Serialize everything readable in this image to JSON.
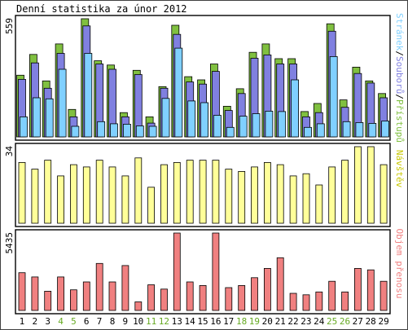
{
  "title": "Denní statistika za únor 2012",
  "colors": {
    "hits": "#80c040",
    "files": "#8080e0",
    "pages": "#80d0ff",
    "visits": "#ffff99",
    "kbytes": "#f08080",
    "outline": "#000000",
    "weekend_label": "#66aa22",
    "weekday_label": "#000000",
    "frame": "#404040"
  },
  "legend": {
    "top": [
      {
        "text": "Přístupů",
        "color": "#80c040"
      },
      {
        "text": "Souborů",
        "color": "#8080e0"
      },
      {
        "text": "Stránek",
        "color": "#80d0ff"
      }
    ],
    "top_separator": "/",
    "middle": {
      "text": "Návštěv",
      "color": "#c8c800"
    },
    "bottom": {
      "text": "Objem přenosu",
      "color": "#f08080"
    }
  },
  "chart_data": {
    "type": "bar",
    "title": "Denní statistika za únor 2012",
    "days": [
      1,
      2,
      3,
      4,
      5,
      6,
      7,
      8,
      9,
      10,
      11,
      12,
      13,
      14,
      15,
      16,
      17,
      18,
      19,
      20,
      21,
      22,
      23,
      24,
      25,
      26,
      27,
      28,
      29
    ],
    "weekend_days": [
      4,
      5,
      11,
      12,
      18,
      19,
      25,
      26
    ],
    "panels": [
      {
        "id": "hits_files_pages",
        "max_label": "559",
        "max": 559,
        "series": [
          {
            "name": "Přístupů",
            "values": [
              292,
              390,
              265,
              440,
              130,
              559,
              360,
              340,
              115,
              315,
              95,
              238,
              528,
              285,
              270,
              345,
              145,
              228,
              400,
              440,
              370,
              370,
              120,
              158,
              535,
              175,
              330,
              265,
              205
            ]
          },
          {
            "name": "Souborů",
            "values": [
              272,
              350,
              230,
              395,
              95,
              525,
              345,
              320,
              95,
              295,
              65,
              230,
              485,
              260,
              250,
              310,
              125,
              205,
              372,
              388,
              345,
              345,
              95,
              115,
              500,
              140,
              300,
              255,
              185
            ]
          },
          {
            "name": "Stránek",
            "values": [
              95,
              185,
              180,
              320,
              50,
              395,
              72,
              62,
              60,
              52,
              50,
              182,
              420,
              170,
              162,
              102,
              45,
              98,
              110,
              122,
              120,
              270,
              45,
              62,
              380,
              72,
              68,
              64,
              75
            ]
          }
        ]
      },
      {
        "id": "visits",
        "max_label": "34",
        "max": 34,
        "series": [
          {
            "name": "Návštěv",
            "values": [
              27,
              24,
              28,
              21,
              26,
              25,
              28,
              25,
              21,
              29,
              16,
              26,
              27,
              28,
              28,
              28,
              24,
              23,
              25,
              27,
              26,
              21,
              22,
              17,
              25,
              28,
              34,
              34,
              26
            ]
          }
        ]
      },
      {
        "id": "kbytes",
        "max_label": "5435",
        "max": 5435,
        "series": [
          {
            "name": "Objem přenosu",
            "values": [
              2650,
              2350,
              1350,
              2350,
              1450,
              2000,
              3300,
              2000,
              3150,
              600,
              1800,
              1500,
              5435,
              2000,
              1750,
              5435,
              1600,
              1750,
              2300,
              2950,
              3700,
              1200,
              1100,
              1300,
              2050,
              1300,
              2950,
              2850,
              2050
            ]
          }
        ]
      }
    ]
  }
}
